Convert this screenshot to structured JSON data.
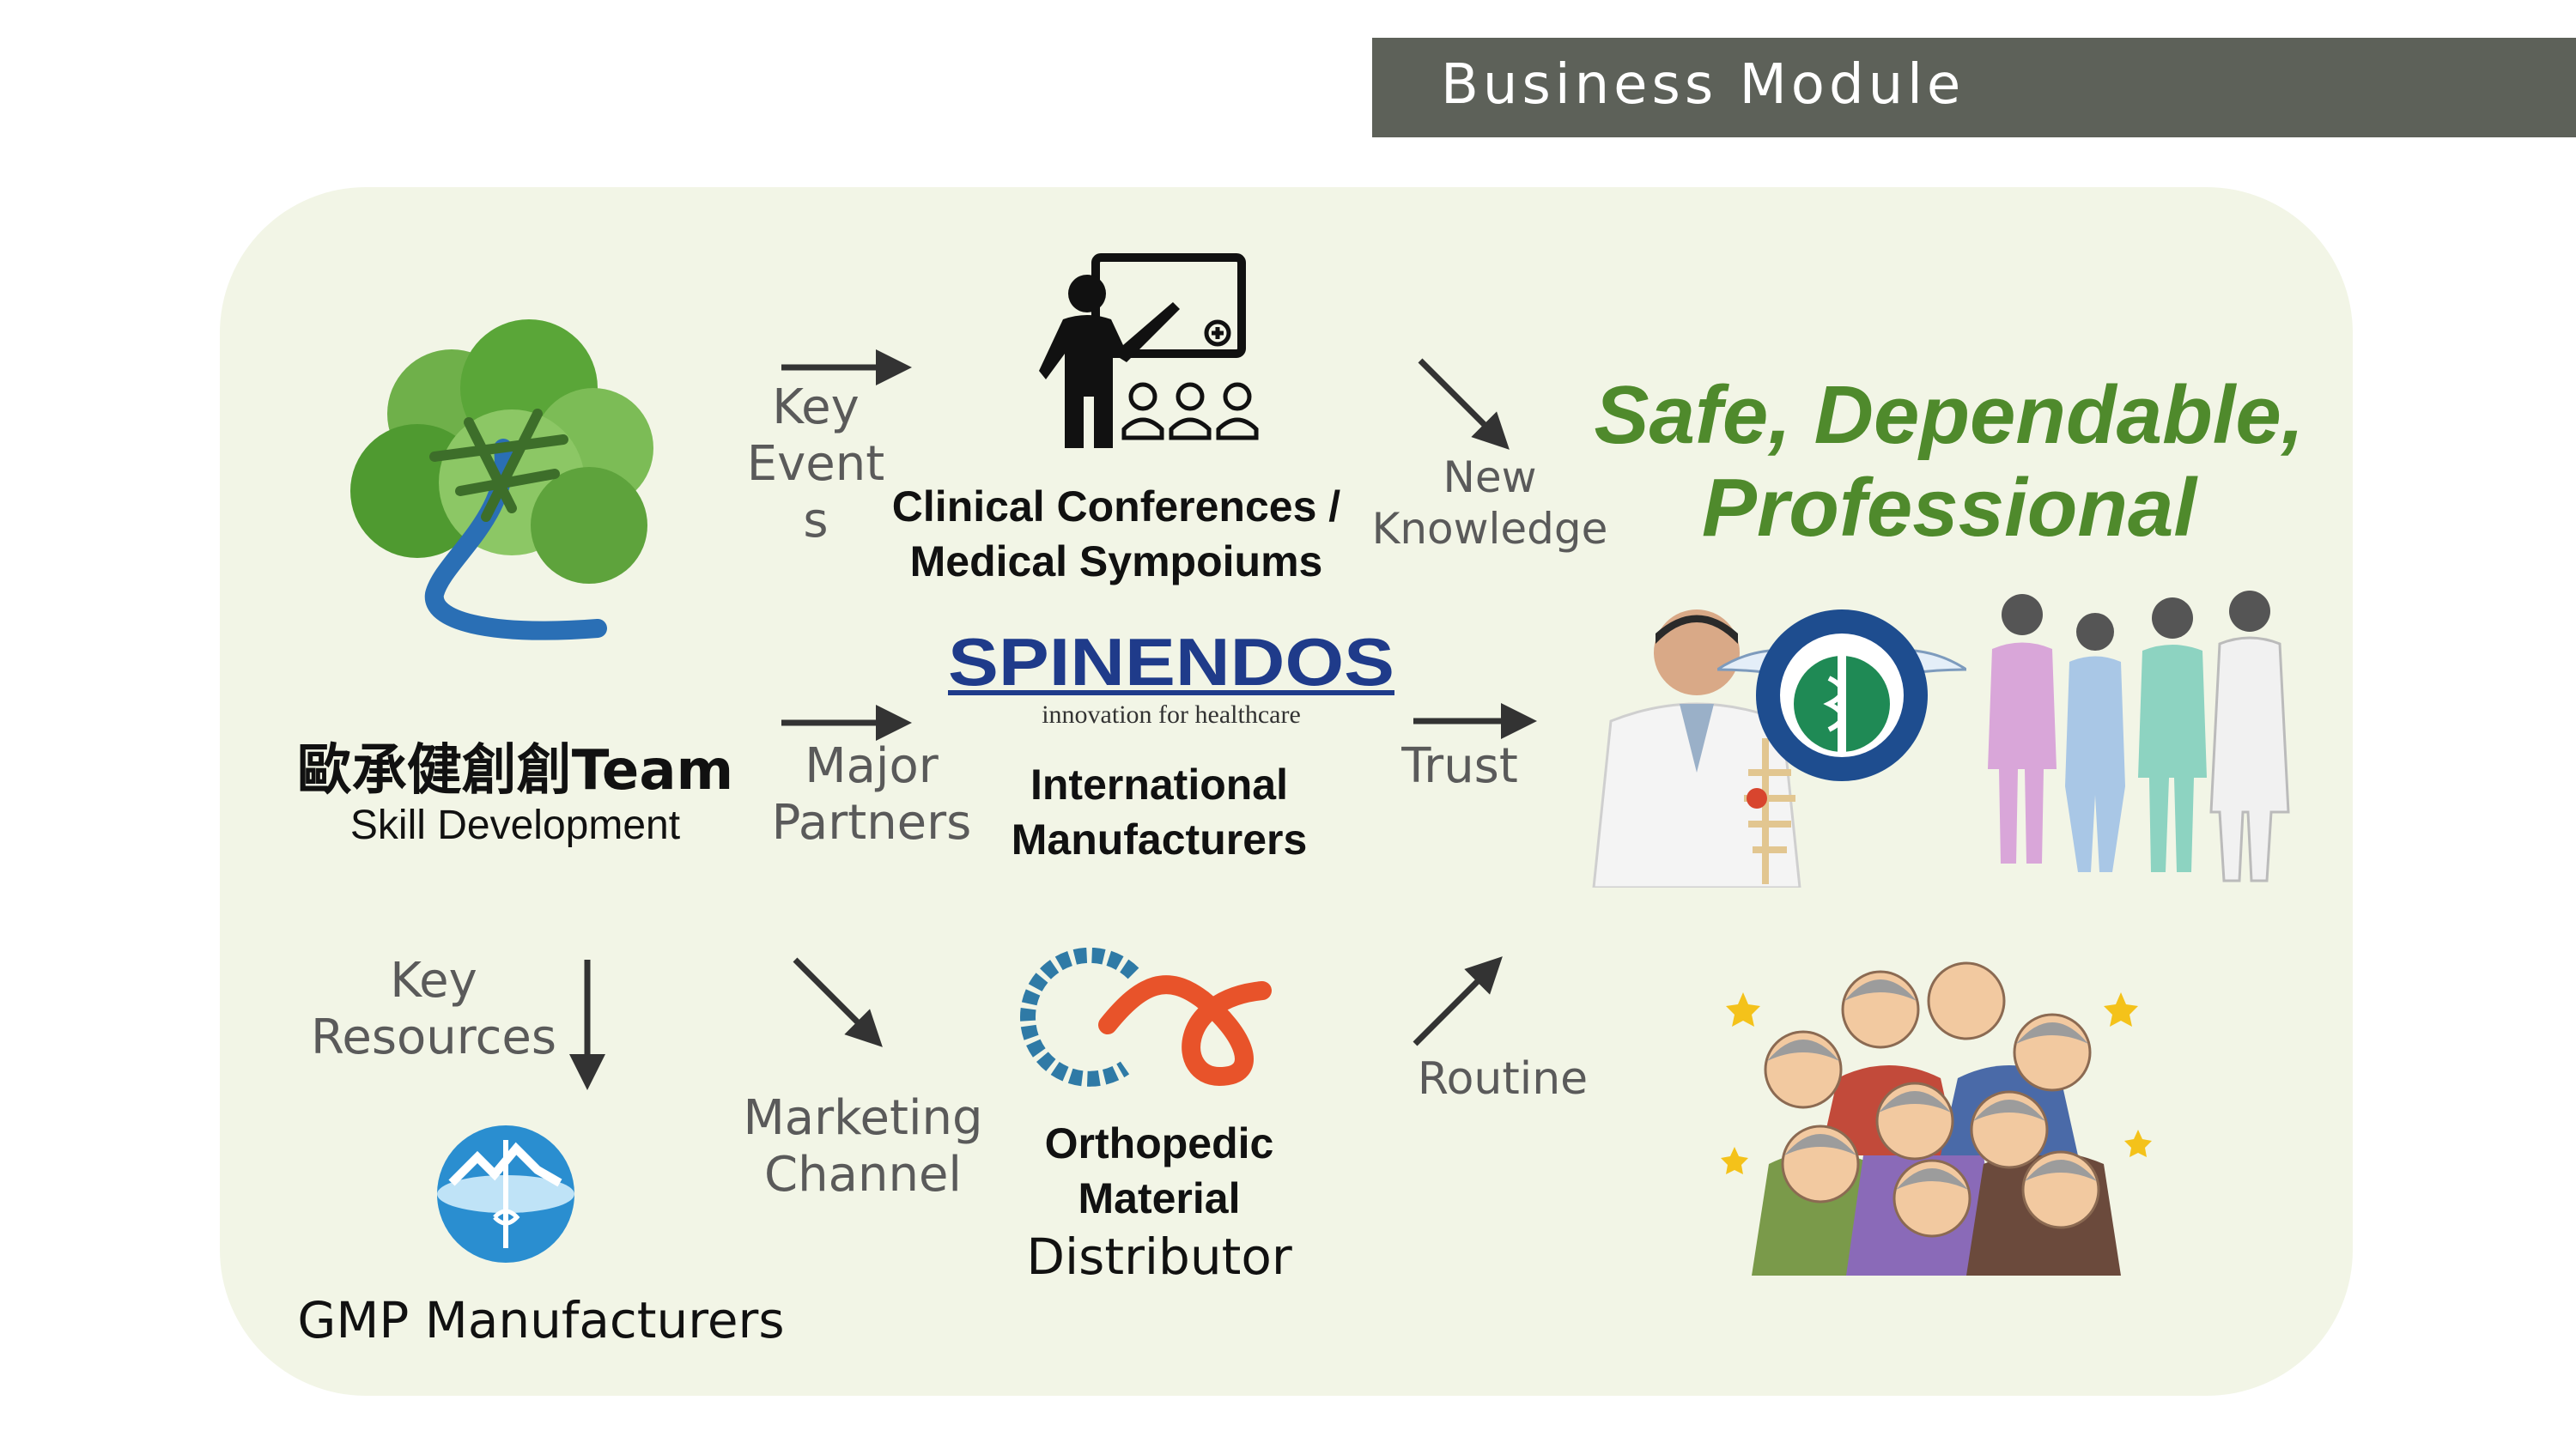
{
  "header": {
    "title": "Business Module"
  },
  "team": {
    "name": "歐承健創創Team",
    "subtitle": "Skill Development"
  },
  "flows": {
    "key_events": [
      "Key",
      "Event",
      "s"
    ],
    "new_knowledge": [
      "New",
      "Knowledge"
    ],
    "major_partners": [
      "Major",
      "Partners"
    ],
    "trust": "Trust",
    "key_resources": [
      "Key",
      "Resources"
    ],
    "marketing_channel": [
      "Marketing",
      "Channel"
    ],
    "routine": "Routine"
  },
  "nodes": {
    "conferences": [
      "Clinical Conferences /",
      "Medical Sympoiums"
    ],
    "manufacturers": [
      "International",
      "Manufacturers"
    ],
    "distributor": [
      "Orthopedic",
      "Material",
      "Distributor"
    ],
    "gmp": "GMP Manufacturers"
  },
  "spinendos": {
    "logo_text": "SPINENDOS",
    "tagline": "innovation for healthcare"
  },
  "tagline": [
    "Safe, Dependable,",
    "Professional"
  ],
  "colors": {
    "header_bg": "#5d6159",
    "panel_bg": "#f2f5e6",
    "tagline_green": "#4f8a2c",
    "arrow": "#333333",
    "spinendos_blue": "#1f3b8a"
  }
}
